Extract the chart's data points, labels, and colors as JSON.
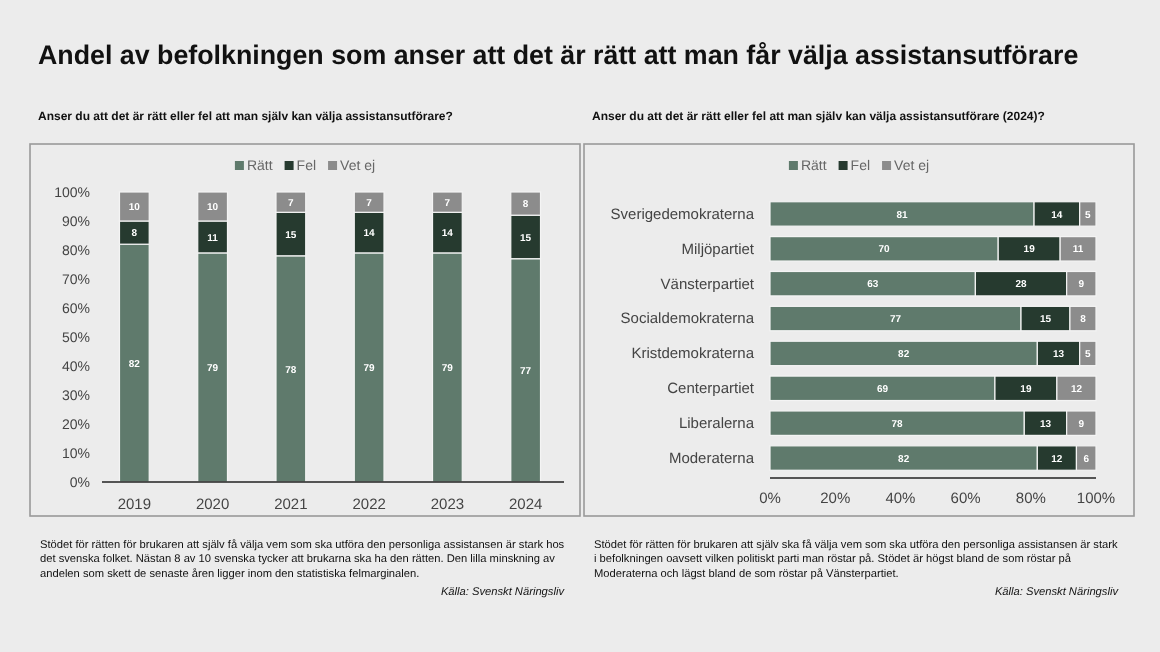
{
  "chart_data": [
    {
      "type": "bar",
      "stacked": true,
      "title": "Andel av befolkningen som anser att det är rätt att man får välja assistansutförare",
      "subtitle": "Anser du att det är rätt eller fel att man själv kan välja assistansutförare?",
      "categories": [
        "2019",
        "2020",
        "2021",
        "2022",
        "2023",
        "2024"
      ],
      "series": [
        {
          "name": "Rätt",
          "color": "#5f7a6c",
          "values": [
            82,
            79,
            78,
            79,
            79,
            77
          ]
        },
        {
          "name": "Fel",
          "color": "#263a2f",
          "values": [
            8,
            11,
            15,
            14,
            14,
            15
          ]
        },
        {
          "name": "Vet ej",
          "color": "#8c8c8c",
          "values": [
            10,
            10,
            7,
            7,
            7,
            8
          ]
        }
      ],
      "ylim": [
        0,
        100
      ],
      "yticks": [
        {
          "value": 0,
          "label": "0%"
        },
        {
          "value": 10,
          "label": "10%"
        },
        {
          "value": 20,
          "label": "20%"
        },
        {
          "value": 30,
          "label": "30%"
        },
        {
          "value": 40,
          "label": "40%"
        },
        {
          "value": 50,
          "label": "50%"
        },
        {
          "value": 60,
          "label": "60%"
        },
        {
          "value": 70,
          "label": "70%"
        },
        {
          "value": 80,
          "label": "80%"
        },
        {
          "value": 90,
          "label": "90%"
        },
        {
          "value": 100,
          "label": "100%"
        }
      ],
      "data_labels": true,
      "grid": false,
      "legend": "top",
      "annotations": [
        "Stödet för rätten för brukaren att själv få välja vem som ska utföra den personliga assistansen är stark hos det svenska folket. Nästan 8 av 10 svenska tycker att brukarna ska ha den rätten. Den lilla minskning av andelen som skett de senaste åren ligger inom den statistiska felmarginalen.",
        "Källa: Svenskt Näringsliv"
      ]
    },
    {
      "type": "bar",
      "stacked": true,
      "orientation": "horizontal",
      "title": "Anser du att det är rätt eller fel att man själv kan välja assistansutförare (2024)?",
      "categories": [
        "Sverigedemokraterna",
        "Miljöpartiet",
        "Vänsterpartiet",
        "Socialdemokraterna",
        "Kristdemokraterna",
        "Centerpartiet",
        "Liberalerna",
        "Moderaterna"
      ],
      "series": [
        {
          "name": "Rätt",
          "color": "#5f7a6c",
          "values": [
            81,
            70,
            63,
            77,
            82,
            69,
            78,
            82
          ]
        },
        {
          "name": "Fel",
          "color": "#263a2f",
          "values": [
            14,
            19,
            28,
            15,
            13,
            19,
            13,
            12
          ]
        },
        {
          "name": "Vet ej",
          "color": "#8c8c8c",
          "values": [
            5,
            11,
            9,
            8,
            5,
            12,
            9,
            6
          ]
        }
      ],
      "xlim": [
        0,
        100
      ],
      "xticks": [
        {
          "value": 0,
          "label": "0%"
        },
        {
          "value": 20,
          "label": "20%"
        },
        {
          "value": 40,
          "label": "40%"
        },
        {
          "value": 60,
          "label": "60%"
        },
        {
          "value": 80,
          "label": "80%"
        },
        {
          "value": 100,
          "label": "100%"
        }
      ],
      "data_labels": true,
      "grid": false,
      "legend": "top",
      "annotations": [
        "Stödet för rätten för brukaren att själv ska få välja vem som ska utföra den personliga assistansen är stark i befolkningen oavsett vilken politiskt parti man röstar på. Stödet är högst bland de som röstar på Moderaterna och lägst bland de som röstar på Vänsterpartiet.",
        "Källa: Svenskt Näringsliv"
      ]
    }
  ]
}
